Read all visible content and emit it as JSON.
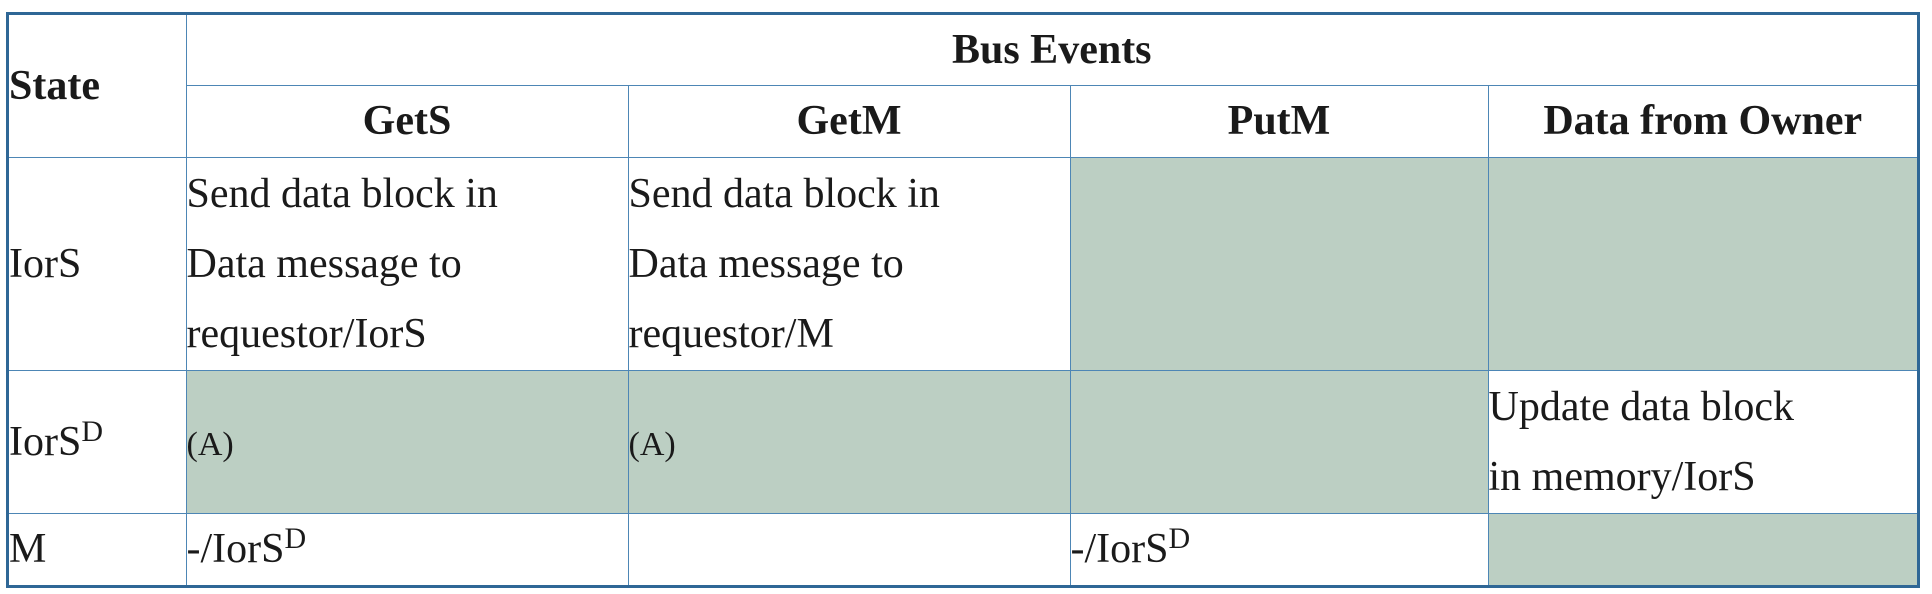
{
  "headers": {
    "state": "State",
    "bus_events": "Bus Events",
    "columns": [
      "GetS",
      "GetM",
      "PutM",
      "Data from Owner"
    ]
  },
  "rows": [
    {
      "state": "IorS",
      "state_sup": "",
      "cells": [
        {
          "lines": [
            "Send data block in",
            "Data message to",
            "requestor/IorS"
          ],
          "shaded": false
        },
        {
          "lines": [
            "Send data block in",
            "Data message to",
            "requestor/M"
          ],
          "shaded": false
        },
        {
          "lines": [],
          "shaded": true
        },
        {
          "lines": [],
          "shaded": true
        }
      ]
    },
    {
      "state": "IorS",
      "state_sup": "D",
      "cells": [
        {
          "text": "(A)",
          "shaded": true
        },
        {
          "text": "(A)",
          "shaded": true
        },
        {
          "text": "",
          "shaded": true
        },
        {
          "lines": [
            "Update data block",
            "in memory/IorS"
          ],
          "shaded": false
        }
      ]
    },
    {
      "state": "M",
      "state_sup": "",
      "cells": [
        {
          "text": "-/IorS",
          "sup": "D",
          "shaded": false
        },
        {
          "text": "",
          "shaded": false
        },
        {
          "text": "-/IorS",
          "sup": "D",
          "shaded": false
        },
        {
          "text": "",
          "shaded": true
        }
      ]
    }
  ],
  "colors": {
    "border": "#2f6796",
    "inner_border": "#4d86b5",
    "shaded": "#bccfc3"
  }
}
